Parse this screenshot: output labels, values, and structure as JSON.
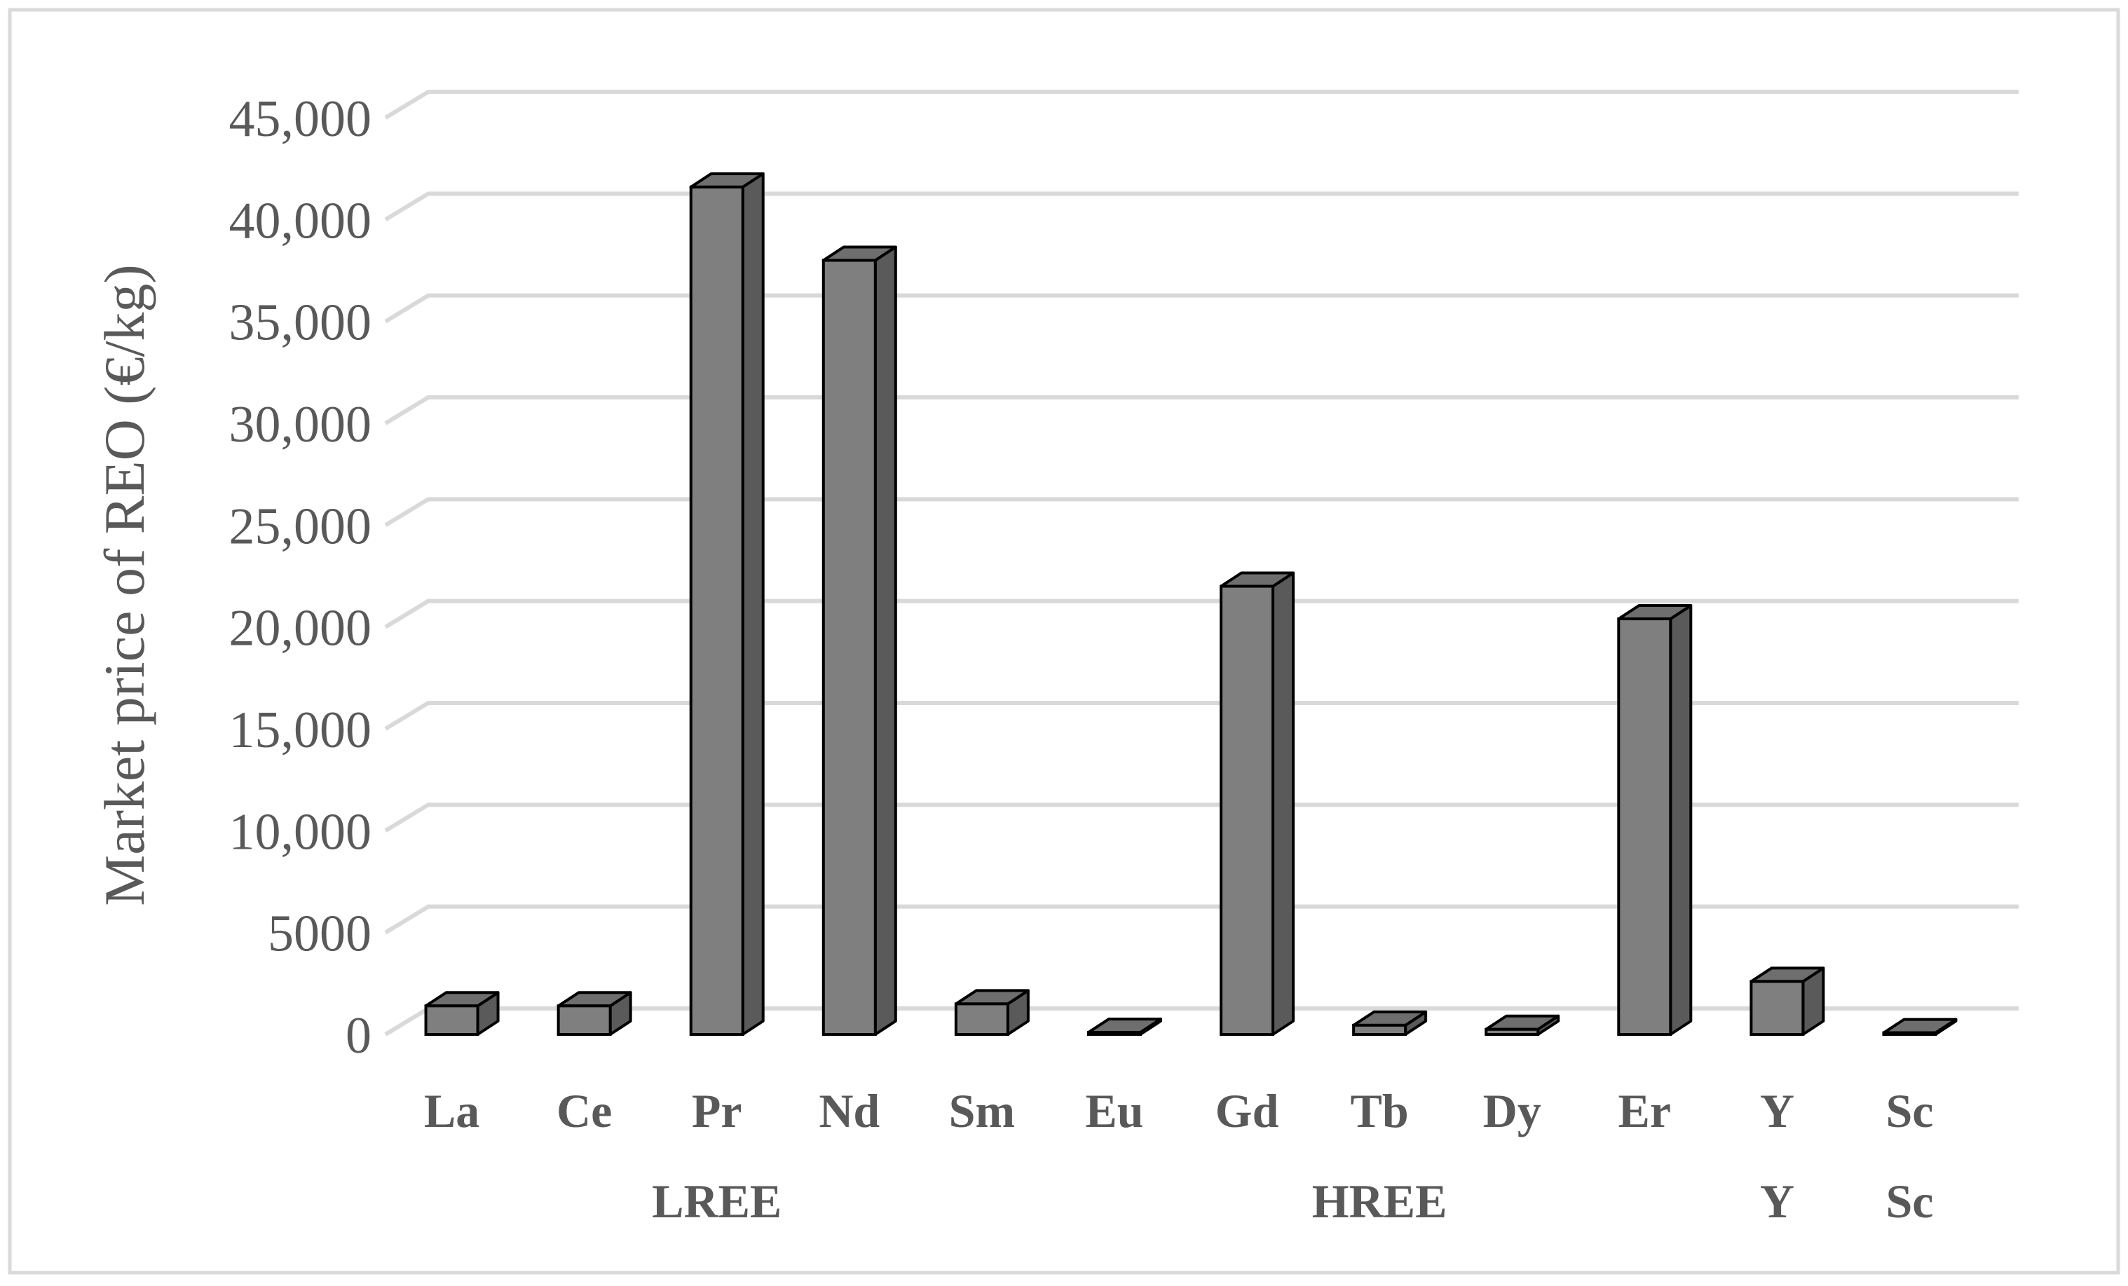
{
  "chart_data": {
    "type": "bar",
    "style": "3d-column",
    "title": "",
    "ylabel": "Market price of REO (€/kg)",
    "xlabel": "",
    "ylim": [
      0,
      45000
    ],
    "y_ticks": [
      {
        "value": 0,
        "label": "0"
      },
      {
        "value": 5000,
        "label": "5000"
      },
      {
        "value": 10000,
        "label": "10,000"
      },
      {
        "value": 15000,
        "label": "15,000"
      },
      {
        "value": 20000,
        "label": "20,000"
      },
      {
        "value": 25000,
        "label": "25,000"
      },
      {
        "value": 30000,
        "label": "30,000"
      },
      {
        "value": 35000,
        "label": "35,000"
      },
      {
        "value": 40000,
        "label": "40,000"
      },
      {
        "value": 45000,
        "label": "45,000"
      }
    ],
    "categories": [
      "La",
      "Ce",
      "Pr",
      "Nd",
      "Sm",
      "Eu",
      "Gd",
      "Tb",
      "Dy",
      "Er",
      "Y",
      "Sc"
    ],
    "values": [
      1400,
      1400,
      41600,
      38000,
      1500,
      100,
      22000,
      450,
      250,
      20400,
      2600,
      80
    ],
    "groups": [
      {
        "label": "LREE",
        "start": 0,
        "end": 4
      },
      {
        "label": "HREE",
        "start": 5,
        "end": 9
      },
      {
        "label": "Y",
        "start": 10,
        "end": 10
      },
      {
        "label": "Sc",
        "start": 11,
        "end": 11
      }
    ],
    "grid": true,
    "legend": "none",
    "colors": {
      "bar_front": "#7f7f7f",
      "bar_side": "#5a5a5a",
      "bar_top": "#6e6e6e",
      "bar_edge": "#000000",
      "grid": "#d9d9d9",
      "axis_text": "#595959",
      "category_text": "#595959",
      "frame": "#d9d9d9"
    }
  }
}
